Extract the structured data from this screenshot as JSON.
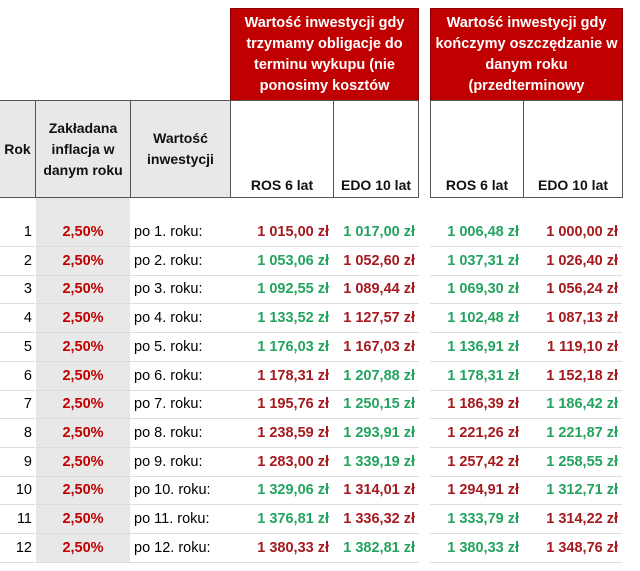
{
  "header": {
    "group1": "Wartość inwestycji gdy trzymamy obligacje  do terminu wykupu (nie ponosimy kosztów",
    "group2": "Wartość inwestycji gdy kończymy oszczędzanie w danym roku (przedterminowy",
    "rok": "Rok",
    "inflacja": "Zakładana inflacja w danym roku",
    "wartosc": "Wartość inwestycji",
    "ros1": "ROS 6 lat",
    "edo1": "EDO 10 lat",
    "ros2": "ROS 6 lat",
    "edo2": "EDO 10 lat"
  },
  "colors": {
    "header_bg": "#c00000",
    "red_value": "#a51a1f",
    "green_value": "#24a35f"
  },
  "rows": [
    {
      "rok": "1",
      "inflacja": "2,50%",
      "label": "po 1. roku:",
      "v": [
        "1 015,00 zł",
        "1 017,00 zł",
        "1 006,48 zł",
        "1 000,00 zł"
      ],
      "c": [
        "r",
        "g",
        "g",
        "r"
      ]
    },
    {
      "rok": "2",
      "inflacja": "2,50%",
      "label": "po 2. roku:",
      "v": [
        "1 053,06 zł",
        "1 052,60 zł",
        "1 037,31 zł",
        "1 026,40 zł"
      ],
      "c": [
        "g",
        "r",
        "g",
        "r"
      ]
    },
    {
      "rok": "3",
      "inflacja": "2,50%",
      "label": "po 3. roku:",
      "v": [
        "1 092,55 zł",
        "1 089,44 zł",
        "1 069,30 zł",
        "1 056,24 zł"
      ],
      "c": [
        "g",
        "r",
        "g",
        "r"
      ]
    },
    {
      "rok": "4",
      "inflacja": "2,50%",
      "label": "po 4. roku:",
      "v": [
        "1 133,52 zł",
        "1 127,57 zł",
        "1 102,48 zł",
        "1 087,13 zł"
      ],
      "c": [
        "g",
        "r",
        "g",
        "r"
      ]
    },
    {
      "rok": "5",
      "inflacja": "2,50%",
      "label": "po 5. roku:",
      "v": [
        "1 176,03 zł",
        "1 167,03 zł",
        "1 136,91 zł",
        "1 119,10 zł"
      ],
      "c": [
        "g",
        "r",
        "g",
        "r"
      ]
    },
    {
      "rok": "6",
      "inflacja": "2,50%",
      "label": "po 6. roku:",
      "v": [
        "1 178,31 zł",
        "1 207,88 zł",
        "1 178,31 zł",
        "1 152,18 zł"
      ],
      "c": [
        "r",
        "g",
        "g",
        "r"
      ]
    },
    {
      "rok": "7",
      "inflacja": "2,50%",
      "label": "po 7. roku:",
      "v": [
        "1 195,76 zł",
        "1 250,15 zł",
        "1 186,39 zł",
        "1 186,42 zł"
      ],
      "c": [
        "r",
        "g",
        "r",
        "g"
      ]
    },
    {
      "rok": "8",
      "inflacja": "2,50%",
      "label": "po 8. roku:",
      "v": [
        "1 238,59 zł",
        "1 293,91 zł",
        "1 221,26 zł",
        "1 221,87 zł"
      ],
      "c": [
        "r",
        "g",
        "r",
        "g"
      ]
    },
    {
      "rok": "9",
      "inflacja": "2,50%",
      "label": "po 9. roku:",
      "v": [
        "1 283,00 zł",
        "1 339,19 zł",
        "1 257,42 zł",
        "1 258,55 zł"
      ],
      "c": [
        "r",
        "g",
        "r",
        "g"
      ]
    },
    {
      "rok": "10",
      "inflacja": "2,50%",
      "label": "po 10. roku:",
      "v": [
        "1 329,06 zł",
        "1 314,01 zł",
        "1 294,91 zł",
        "1 312,71 zł"
      ],
      "c": [
        "g",
        "r",
        "r",
        "g"
      ]
    },
    {
      "rok": "11",
      "inflacja": "2,50%",
      "label": "po 11. roku:",
      "v": [
        "1 376,81 zł",
        "1 336,32 zł",
        "1 333,79 zł",
        "1 314,22 zł"
      ],
      "c": [
        "g",
        "r",
        "g",
        "r"
      ]
    },
    {
      "rok": "12",
      "inflacja": "2,50%",
      "label": "po 12. roku:",
      "v": [
        "1 380,33 zł",
        "1 382,81 zł",
        "1 380,33 zł",
        "1 348,76 zł"
      ],
      "c": [
        "r",
        "g",
        "g",
        "r"
      ]
    }
  ]
}
